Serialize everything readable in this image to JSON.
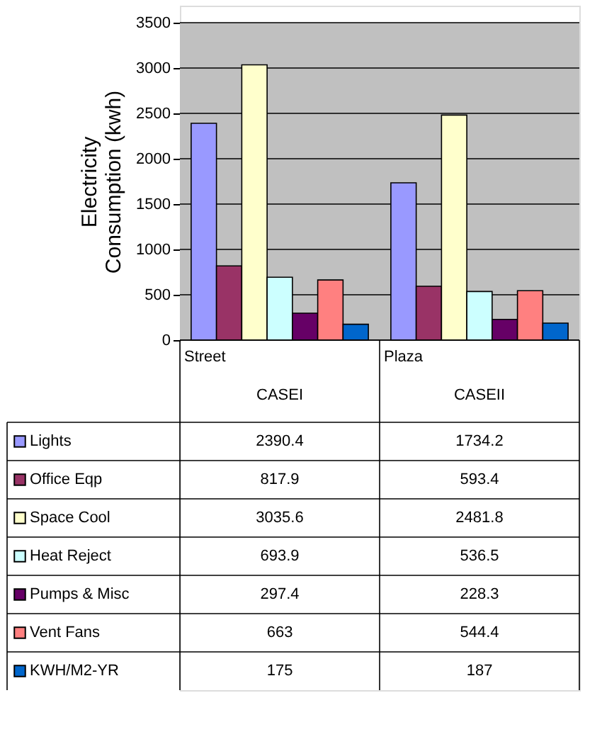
{
  "chart_data": {
    "type": "bar",
    "ylabel": "Electricity Consumption (kwh)",
    "categories": [
      "Street\nCASEI",
      "Plaza\nCASEII"
    ],
    "series": [
      {
        "name": "Lights",
        "color": "#9999ff",
        "values": [
          2390.4,
          1734.2
        ]
      },
      {
        "name": "Office Eqp",
        "color": "#993366",
        "values": [
          817.9,
          593.4
        ]
      },
      {
        "name": "Space Cool",
        "color": "#ffffcc",
        "values": [
          3035.6,
          2481.8
        ]
      },
      {
        "name": "Heat Reject",
        "color": "#ccffff",
        "values": [
          693.9,
          536.5
        ]
      },
      {
        "name": "Pumps & Misc",
        "color": "#660066",
        "values": [
          297.4,
          228.3
        ]
      },
      {
        "name": "Vent Fans",
        "color": "#ff8080",
        "values": [
          663,
          544.4
        ]
      },
      {
        "name": "KWH/M2-YR",
        "color": "#0066cc",
        "values": [
          175,
          187
        ]
      }
    ],
    "ylim": [
      0,
      3500
    ],
    "yticks": [
      0,
      500,
      1000,
      1500,
      2000,
      2500,
      3000,
      3500
    ],
    "grid": "y",
    "data_labels": true,
    "legend": "bottom left"
  }
}
